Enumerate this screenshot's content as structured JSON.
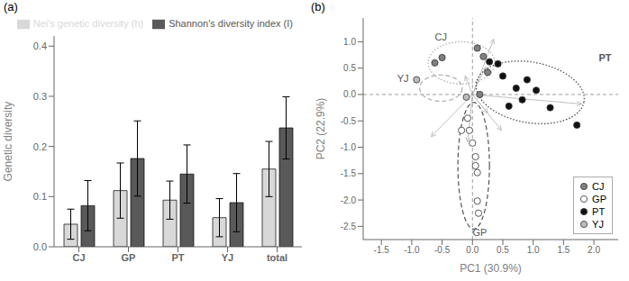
{
  "chart_data": [
    {
      "type": "bar",
      "title": "(a)",
      "categories": [
        "CJ",
        "GP",
        "PT",
        "YJ",
        "total"
      ],
      "ylabel": "Genetic diversity",
      "ylim": [
        0,
        0.42
      ],
      "yticks": [
        {
          "value": 0,
          "label": "0.0"
        },
        0.1,
        0.2,
        0.3,
        0.4
      ],
      "legend": "upper right",
      "series": [
        {
          "name": "Nei's genetic diversity (h)",
          "color": "#d8d8d8",
          "values": [
            0.045,
            0.112,
            0.093,
            0.058,
            0.155
          ],
          "errors": [
            0.03,
            0.055,
            0.038,
            0.038,
            0.055
          ]
        },
        {
          "name": "Shannon's diversity index (I)",
          "color": "#595959",
          "values": [
            0.082,
            0.176,
            0.145,
            0.088,
            0.237
          ],
          "errors": [
            0.05,
            0.075,
            0.058,
            0.058,
            0.062
          ]
        }
      ]
    },
    {
      "type": "scatter",
      "title": "(b)",
      "xlabel": "PC1 (30.9%)",
      "ylabel": "PC2 (22.9%)",
      "xlim": [
        -1.8,
        2.4
      ],
      "ylim": [
        -2.75,
        1.45
      ],
      "xticks": [
        -1.5,
        {
          "value": -1.0,
          "label": "-1.0"
        },
        -0.5,
        {
          "value": 0.0,
          "label": "0.0"
        },
        0.5,
        {
          "value": 1.0,
          "label": "1.0"
        },
        1.5,
        {
          "value": 2.0,
          "label": "2.0"
        }
      ],
      "yticks": [
        -2.5,
        {
          "value": -2.0,
          "label": "-2.0"
        },
        -1.5,
        {
          "value": -1.0,
          "label": "-1.0"
        },
        -0.5,
        {
          "value": 0.0,
          "label": "0.0"
        },
        0.5,
        {
          "value": 1.0,
          "label": "1.0"
        }
      ],
      "legend": "lower right",
      "series": [
        {
          "name": "CJ",
          "color": "#808080",
          "points": [
            [
              -0.62,
              0.6
            ],
            [
              -0.5,
              0.7
            ],
            [
              0.08,
              0.88
            ],
            [
              0.18,
              0.72
            ],
            [
              0.25,
              0.42
            ],
            [
              0.12,
              0.0
            ]
          ]
        },
        {
          "name": "GP",
          "color": "#ffffff",
          "points": [
            [
              -0.08,
              -0.45
            ],
            [
              -0.05,
              -0.68
            ],
            [
              0.0,
              -0.92
            ],
            [
              0.05,
              -1.18
            ],
            [
              0.08,
              -1.48
            ],
            [
              0.08,
              -2.02
            ],
            [
              0.1,
              -2.25
            ],
            [
              -0.18,
              -0.68
            ],
            [
              0.05,
              -1.35
            ]
          ]
        },
        {
          "name": "PT",
          "color": "#111111",
          "points": [
            [
              0.28,
              0.62
            ],
            [
              0.42,
              0.58
            ],
            [
              0.5,
              0.35
            ],
            [
              0.72,
              0.12
            ],
            [
              0.9,
              0.28
            ],
            [
              1.05,
              0.08
            ],
            [
              1.28,
              -0.25
            ],
            [
              1.72,
              -0.58
            ],
            [
              0.6,
              -0.22
            ],
            [
              0.82,
              -0.1
            ]
          ]
        },
        {
          "name": "YJ",
          "color": "#bbbbbb",
          "points": [
            [
              -0.92,
              0.28
            ],
            [
              -0.1,
              -0.05
            ]
          ]
        }
      ],
      "arrows": {
        "color": "#c0c0c0",
        "segments": [
          [
            0.0,
            0.0,
            0.35,
            1.05
          ],
          [
            0.0,
            0.0,
            -0.08,
            -0.9
          ],
          [
            0.0,
            0.0,
            0.48,
            -0.68
          ],
          [
            0.0,
            0.0,
            0.25,
            -0.35
          ],
          [
            0.0,
            0.0,
            -0.68,
            -0.8
          ],
          [
            0.0,
            0.0,
            1.8,
            -0.18
          ],
          [
            0.0,
            0.0,
            -0.12,
            0.35
          ],
          [
            0.0,
            0.0,
            0.22,
            0.52
          ]
        ]
      },
      "reference_lines": [
        {
          "axis": "y",
          "value": 0
        },
        {
          "axis": "x",
          "value": 0
        }
      ],
      "ellipses": [
        {
          "cx": -0.18,
          "cy": 0.6,
          "width": 1.1,
          "height": 0.8,
          "angle": 0,
          "color": "#aaaaaa",
          "line_style": "dotted"
        },
        {
          "cx": 0.02,
          "cy": -1.35,
          "width": 0.52,
          "height": 2.4,
          "angle": 0,
          "color": "#555555",
          "line_style": "dashed"
        },
        {
          "cx": 0.95,
          "cy": 0.04,
          "width": 1.8,
          "height": 1.15,
          "angle": -10,
          "color": "#444444",
          "line_style": "dotted"
        },
        {
          "cx": -0.52,
          "cy": 0.12,
          "width": 0.7,
          "height": 0.5,
          "angle": 0,
          "color": "#aaaaaa",
          "line_style": "dashed"
        }
      ],
      "annotations": [
        {
          "text": "CJ",
          "x": -0.52,
          "y": 1.02
        },
        {
          "text": "YJ",
          "x": -1.05,
          "y": 0.28
        },
        {
          "text": "GP",
          "x": 0.12,
          "y": -2.55
        },
        {
          "text": "PT",
          "x": 2.08,
          "y": 0.68
        }
      ]
    }
  ]
}
